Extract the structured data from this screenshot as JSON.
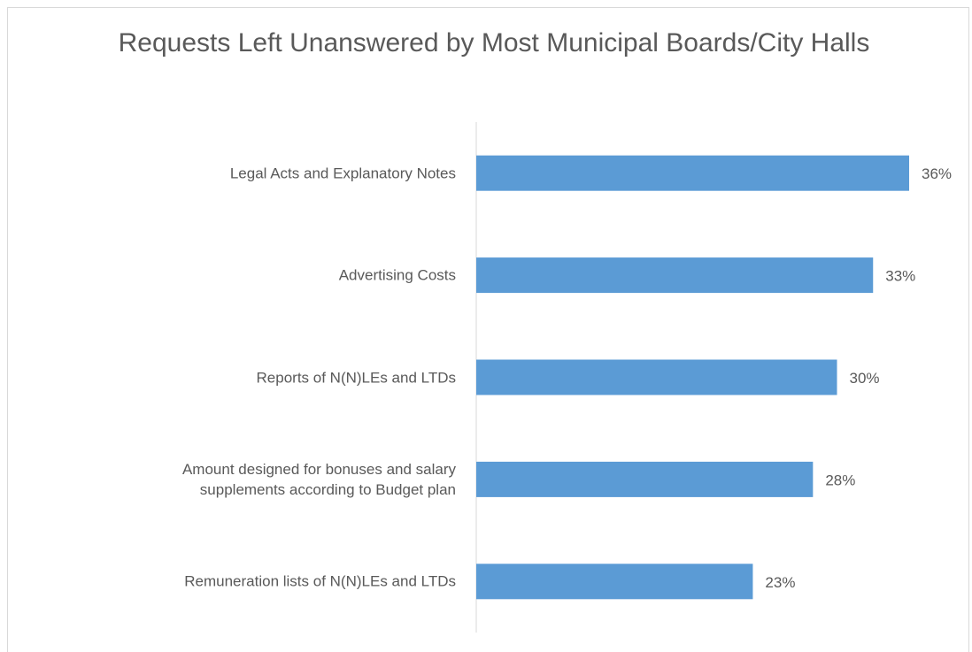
{
  "chart_data": {
    "type": "bar",
    "orientation": "horizontal",
    "title": "Requests Left Unanswered by Most Municipal Boards/City Halls",
    "categories": [
      "Legal Acts and Explanatory Notes",
      "Advertising Costs",
      "Reports of N(N)LEs and LTDs",
      "Amount designed for bonuses and salary supplements according to Budget plan",
      "Remuneration lists of N(N)LEs and LTDs"
    ],
    "values": [
      36,
      33,
      30,
      28,
      23
    ],
    "value_labels": [
      "36%",
      "33%",
      "30%",
      "28%",
      "23%"
    ],
    "color": "#5b9bd5"
  }
}
